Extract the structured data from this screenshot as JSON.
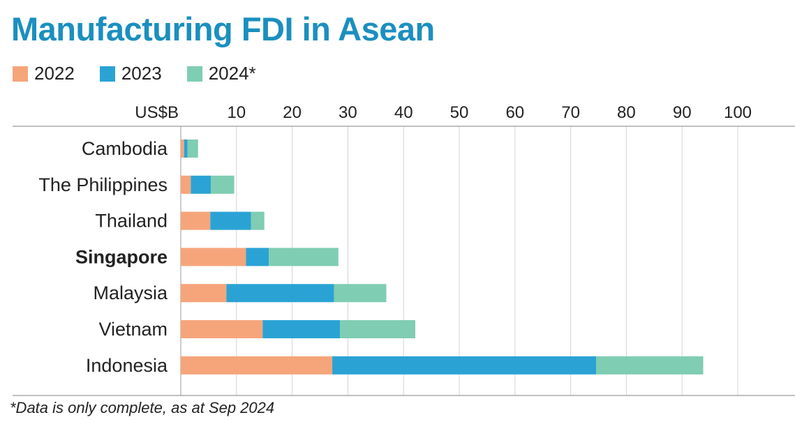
{
  "header": {
    "title": "Manufacturing FDI in Asean"
  },
  "legend": [
    {
      "label": "2022",
      "color": "#f6a57b"
    },
    {
      "label": "2023",
      "color": "#2aa3d4"
    },
    {
      "label": "2024*",
      "color": "#7fcdb2"
    }
  ],
  "footnote": "*Data is only complete, as at Sep 2024",
  "chart_data": {
    "type": "bar",
    "orientation": "horizontal",
    "stacked": true,
    "title": "Manufacturing FDI in Asean",
    "unit_label": "US$B",
    "xlim": [
      0,
      100
    ],
    "ticks": [
      10,
      20,
      30,
      40,
      50,
      60,
      70,
      80,
      90,
      100
    ],
    "grid": true,
    "legend_position": "top-left",
    "categories": [
      "Cambodia",
      "The Philippines",
      "Thailand",
      "Singapore",
      "Malaysia",
      "Vietnam",
      "Indonesia"
    ],
    "highlight": "Singapore",
    "series": [
      {
        "name": "2022",
        "color": "#f6a57b",
        "values": [
          0.6,
          1.8,
          5.3,
          11.7,
          8.2,
          14.7,
          27.2
        ]
      },
      {
        "name": "2023",
        "color": "#2aa3d4",
        "values": [
          0.6,
          3.6,
          7.3,
          4.1,
          19.3,
          13.9,
          47.4
        ]
      },
      {
        "name": "2024*",
        "color": "#7fcdb2",
        "values": [
          1.9,
          4.2,
          2.4,
          12.5,
          9.4,
          13.5,
          19.2
        ]
      }
    ]
  }
}
